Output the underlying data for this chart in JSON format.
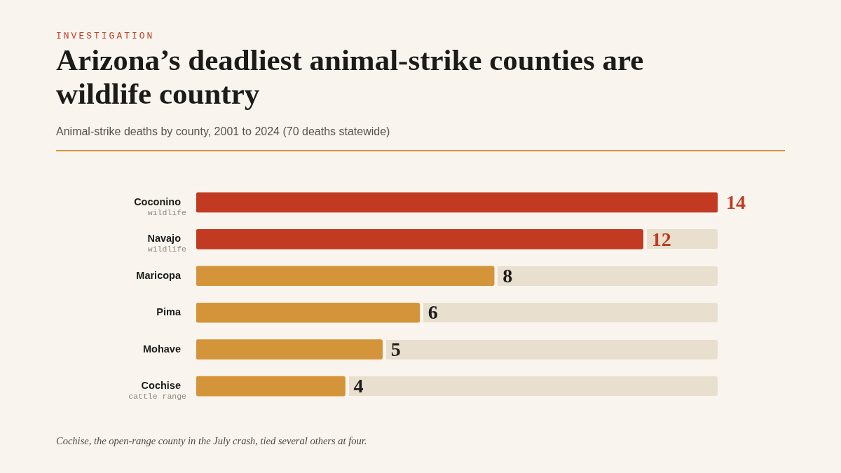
{
  "chart_data": {
    "type": "bar",
    "orientation": "horizontal",
    "title": "Arizona’s deadliest animal-strike counties are wildlife country",
    "subtitle": "Animal-strike deaths by county, 2001 to 2024 (70 deaths statewide)",
    "categories": [
      "Coconino",
      "Navajo",
      "Maricopa",
      "Pima",
      "Mohave",
      "Cochise"
    ],
    "values": [
      14,
      12,
      8,
      6,
      5,
      4
    ],
    "colors": [
      "#c23a22",
      "#c23a22",
      "#d4953a",
      "#d4953a",
      "#d4953a",
      "#d4953a"
    ],
    "data_labels": true,
    "grid": false,
    "legend": false,
    "annotations": [
      "INVESTIGATION",
      "wildlife",
      "wildlife",
      "cattle range",
      "Cochise, the open-range county in the July crash, tied several others at four."
    ]
  }
}
